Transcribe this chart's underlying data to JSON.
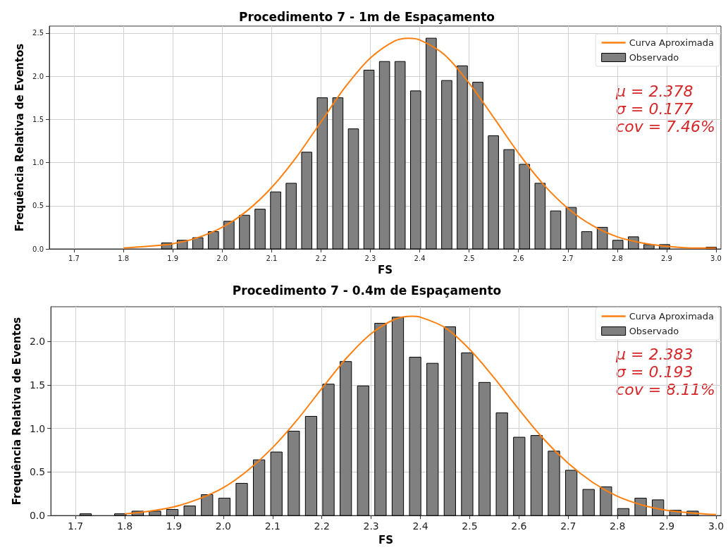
{
  "chart_data": [
    {
      "type": "histogram",
      "title": "Procedimento 7 - 1m de Espaçamento",
      "xlabel": "FS",
      "ylabel": "Frequência Relativa de Eventos",
      "bins": [
        1.872,
        1.9035,
        1.935,
        1.9665,
        1.998,
        2.0295,
        2.061,
        2.0925,
        2.124,
        2.1555,
        2.187,
        2.2185,
        2.25,
        2.2815,
        2.313,
        2.3445,
        2.376,
        2.4075,
        2.439,
        2.4705,
        2.502,
        2.5335,
        2.565,
        2.5965,
        2.628,
        2.6595,
        2.691,
        2.7225,
        2.754,
        2.7855,
        2.817,
        2.8485,
        2.88,
        2.9115,
        2.943,
        2.9745,
        3.006
      ],
      "series": [
        {
          "name": "Curva Aproximada",
          "type": "line",
          "color": "#ff7f0e",
          "x": [
            1.8,
            1.85,
            1.9,
            1.95,
            2.0,
            2.05,
            2.1,
            2.15,
            2.2,
            2.25,
            2.3,
            2.35,
            2.378,
            2.4,
            2.45,
            2.5,
            2.55,
            2.6,
            2.65,
            2.7,
            2.75,
            2.8,
            2.85,
            2.9,
            2.95,
            3.0
          ],
          "values": [
            0.01,
            0.03,
            0.06,
            0.13,
            0.25,
            0.44,
            0.71,
            1.06,
            1.47,
            1.88,
            2.21,
            2.41,
            2.44,
            2.42,
            2.25,
            1.92,
            1.52,
            1.11,
            0.75,
            0.47,
            0.27,
            0.14,
            0.07,
            0.03,
            0.01,
            0.01
          ]
        },
        {
          "name": "Observado",
          "type": "histogram",
          "color": "#808080",
          "values": [
            0.07,
            0.1,
            0.13,
            0.2,
            0.32,
            0.39,
            0.46,
            0.66,
            0.76,
            1.12,
            1.75,
            1.75,
            1.39,
            2.07,
            2.17,
            2.17,
            1.83,
            2.44,
            1.95,
            2.12,
            1.93,
            1.31,
            1.15,
            0.98,
            0.76,
            0.44,
            0.48,
            0.2,
            0.25,
            0.1,
            0.14,
            0.05,
            0.05,
            0,
            0,
            0.02
          ]
        }
      ],
      "xlim": [
        1.65,
        3.01
      ],
      "ylim": [
        0,
        2.58
      ],
      "xticks": [
        {
          "value": 1.7,
          "label": "1.7"
        },
        {
          "value": 1.8,
          "label": "1.8"
        },
        {
          "value": 1.9,
          "label": "1.9"
        },
        {
          "value": 2.0,
          "label": "2.0"
        },
        {
          "value": 2.1,
          "label": "2.1"
        },
        {
          "value": 2.2,
          "label": "2.2"
        },
        {
          "value": 2.3,
          "label": "2.3"
        },
        {
          "value": 2.4,
          "label": "2.4"
        },
        {
          "value": 2.5,
          "label": "2.5"
        },
        {
          "value": 2.6,
          "label": "2.6"
        },
        {
          "value": 2.7,
          "label": "2.7"
        },
        {
          "value": 2.8,
          "label": "2.8"
        },
        {
          "value": 2.9,
          "label": "2.9"
        },
        {
          "value": 3.0,
          "label": "3.0"
        }
      ],
      "yticks": [
        {
          "value": 0,
          "label": "0.0"
        },
        {
          "value": 0.5,
          "label": "0.5"
        },
        {
          "value": 1.0,
          "label": "1.0"
        },
        {
          "value": 1.5,
          "label": "1.5"
        },
        {
          "value": 2.0,
          "label": "2.0"
        },
        {
          "value": 2.5,
          "label": "2.5"
        }
      ],
      "annotations": [
        "μ = 2.378",
        "σ = 0.177",
        "cov = 7.46%"
      ],
      "legend": "top right",
      "grid": true
    },
    {
      "type": "histogram",
      "title": "Procedimento 7 - 0.4m de Espaçamento",
      "xlabel": "FS",
      "ylabel": "Frequência Relativa de Eventos",
      "bins": [
        1.703,
        1.7382,
        1.7734,
        1.8086,
        1.8438,
        1.879,
        1.9142,
        1.9494,
        1.9846,
        2.0198,
        2.055,
        2.0902,
        2.1254,
        2.1606,
        2.1958,
        2.231,
        2.2662,
        2.3014,
        2.3366,
        2.3718,
        2.407,
        2.4422,
        2.4774,
        2.5126,
        2.5478,
        2.583,
        2.6182,
        2.6534,
        2.6886,
        2.7238,
        2.759,
        2.7942,
        2.8294,
        2.8646,
        2.8998,
        2.935,
        2.9702
      ],
      "series": [
        {
          "name": "Curva Aproximada",
          "type": "line",
          "color": "#ff7f0e",
          "x": [
            1.8,
            1.85,
            1.9,
            1.95,
            2.0,
            2.05,
            2.1,
            2.15,
            2.2,
            2.25,
            2.3,
            2.35,
            2.383,
            2.4,
            2.45,
            2.5,
            2.55,
            2.6,
            2.65,
            2.7,
            2.75,
            2.8,
            2.85,
            2.9,
            2.95,
            3.0
          ],
          "values": [
            0.02,
            0.05,
            0.1,
            0.19,
            0.32,
            0.52,
            0.78,
            1.1,
            1.46,
            1.81,
            2.09,
            2.26,
            2.29,
            2.28,
            2.16,
            1.91,
            1.58,
            1.22,
            0.88,
            0.6,
            0.38,
            0.22,
            0.12,
            0.06,
            0.03,
            0.01
          ]
        },
        {
          "name": "Observado",
          "type": "histogram",
          "color": "#808080",
          "values": [
            0.02,
            0,
            0.02,
            0.05,
            0.05,
            0.07,
            0.11,
            0.24,
            0.2,
            0.37,
            0.64,
            0.73,
            0.97,
            1.14,
            1.51,
            1.77,
            1.49,
            2.21,
            2.28,
            1.82,
            1.75,
            2.17,
            1.87,
            1.53,
            1.18,
            0.9,
            0.92,
            0.74,
            0.52,
            0.3,
            0.33,
            0.08,
            0.2,
            0.18,
            0.06,
            0.05
          ]
        }
      ],
      "xlim": [
        1.65,
        3.01
      ],
      "ylim": [
        0,
        2.4
      ],
      "xticks": [
        {
          "value": 1.7,
          "label": "1.7"
        },
        {
          "value": 1.8,
          "label": "1.8"
        },
        {
          "value": 1.9,
          "label": "1.9"
        },
        {
          "value": 2.0,
          "label": "2.0"
        },
        {
          "value": 2.1,
          "label": "2.1"
        },
        {
          "value": 2.2,
          "label": "2.2"
        },
        {
          "value": 2.3,
          "label": "2.3"
        },
        {
          "value": 2.4,
          "label": "2.4"
        },
        {
          "value": 2.5,
          "label": "2.5"
        },
        {
          "value": 2.6,
          "label": "2.6"
        },
        {
          "value": 2.7,
          "label": "2.7"
        },
        {
          "value": 2.8,
          "label": "2.8"
        },
        {
          "value": 2.9,
          "label": "2.9"
        },
        {
          "value": 3.0,
          "label": "3.0"
        }
      ],
      "yticks": [
        {
          "value": 0,
          "label": "0.0"
        },
        {
          "value": 0.5,
          "label": "0.5"
        },
        {
          "value": 1.0,
          "label": "1.0"
        },
        {
          "value": 1.5,
          "label": "1.5"
        },
        {
          "value": 2.0,
          "label": "2.0"
        }
      ],
      "annotations": [
        "μ = 2.383",
        "σ = 0.193",
        "cov = 8.11%"
      ],
      "legend": "top right",
      "grid": true
    }
  ]
}
